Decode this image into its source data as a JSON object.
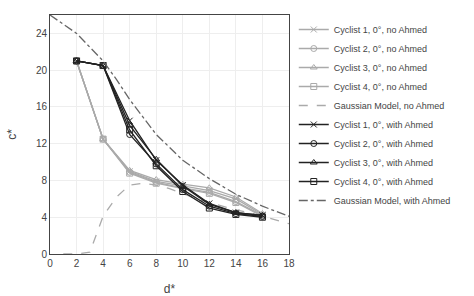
{
  "chart_data": {
    "type": "line",
    "xlabel": "d*",
    "ylabel": "c*",
    "xlim": [
      0,
      18
    ],
    "ylim": [
      0,
      26
    ],
    "xticks": [
      0,
      2,
      4,
      6,
      8,
      10,
      12,
      14,
      16,
      18
    ],
    "yticks": [
      0,
      4,
      8,
      12,
      16,
      20,
      24
    ],
    "grid": true,
    "legend": "right",
    "series": [
      {
        "name": "Cyclist 1, 0°, no Ahmed",
        "color": "#aaaaaa",
        "marker": "x",
        "line_style": "solid",
        "x": [
          2,
          4,
          6,
          8,
          10,
          12,
          14,
          16
        ],
        "values": [
          21.0,
          12.5,
          9.0,
          7.9,
          7.4,
          6.9,
          6.0,
          4.3
        ]
      },
      {
        "name": "Cyclist 2, 0°, no Ahmed",
        "color": "#aaaaaa",
        "marker": "circle",
        "line_style": "solid",
        "x": [
          2,
          4,
          6,
          8,
          10,
          12,
          14,
          16
        ],
        "values": [
          21.0,
          12.5,
          8.9,
          7.8,
          7.2,
          6.7,
          5.7,
          4.2
        ]
      },
      {
        "name": "Cyclist 3, 0°, no Ahmed",
        "color": "#aaaaaa",
        "marker": "triangle",
        "line_style": "solid",
        "x": [
          2,
          4,
          6,
          8,
          10,
          12,
          14,
          16
        ],
        "values": [
          21.0,
          12.5,
          9.1,
          8.1,
          7.6,
          7.2,
          6.2,
          4.4
        ]
      },
      {
        "name": "Cyclist 4, 0°, no Ahmed",
        "color": "#aaaaaa",
        "marker": "square",
        "line_style": "solid",
        "x": [
          2,
          4,
          6,
          8,
          10,
          12,
          14,
          16
        ],
        "values": [
          21.0,
          12.5,
          8.8,
          7.7,
          7.1,
          6.6,
          5.6,
          4.1
        ]
      },
      {
        "name": "Gaussian Model, no Ahmed",
        "color": "#aaaaaa",
        "line_style": "dashed",
        "x": [
          1,
          2,
          3,
          4,
          5,
          6,
          7,
          8,
          9,
          10,
          11,
          12,
          13,
          14,
          15,
          16,
          17,
          18
        ],
        "values": [
          0,
          0,
          0.2,
          4.1,
          6.2,
          7.5,
          7.7,
          7.5,
          7.1,
          6.6,
          6.0,
          5.6,
          5.2,
          4.8,
          4.5,
          4.1,
          3.7,
          3.3
        ]
      },
      {
        "name": "Cyclist 1, 0°, with Ahmed",
        "color": "#222222",
        "marker": "x",
        "line_style": "solid",
        "x": [
          2,
          4,
          6,
          8,
          10,
          12,
          14,
          16
        ],
        "values": [
          21.0,
          20.5,
          14.5,
          10.2,
          7.5,
          5.5,
          4.5,
          4.2
        ]
      },
      {
        "name": "Cyclist 2, 0°, with Ahmed",
        "color": "#222222",
        "marker": "circle",
        "line_style": "solid",
        "x": [
          2,
          4,
          6,
          8,
          10,
          12,
          14,
          16
        ],
        "values": [
          21.0,
          20.5,
          13.0,
          9.8,
          7.0,
          5.2,
          4.4,
          4.1
        ]
      },
      {
        "name": "Cyclist 3, 0°, with Ahmed",
        "color": "#222222",
        "marker": "triangle",
        "line_style": "solid",
        "x": [
          2,
          4,
          6,
          8,
          10,
          12,
          14,
          16
        ],
        "values": [
          21.0,
          20.5,
          14.0,
          10.3,
          7.4,
          5.4,
          4.5,
          4.2
        ]
      },
      {
        "name": "Cyclist 4, 0°, with Ahmed",
        "color": "#222222",
        "marker": "square",
        "line_style": "solid",
        "x": [
          2,
          4,
          6,
          8,
          10,
          12,
          14,
          16
        ],
        "values": [
          21.0,
          20.5,
          13.5,
          9.6,
          6.8,
          5.0,
          4.3,
          4.0
        ]
      },
      {
        "name": "Gaussian Model, with Ahmed",
        "color": "#666666",
        "line_style": "dashdot",
        "x": [
          0,
          0.5,
          1,
          1.5,
          2,
          3,
          4,
          5,
          6,
          8,
          10,
          12,
          14,
          16,
          18
        ],
        "values": [
          26,
          25.5,
          25,
          24.5,
          24,
          22.5,
          21,
          19,
          16.8,
          13,
          10.2,
          8.2,
          6.5,
          5.2,
          4.1
        ]
      }
    ]
  }
}
